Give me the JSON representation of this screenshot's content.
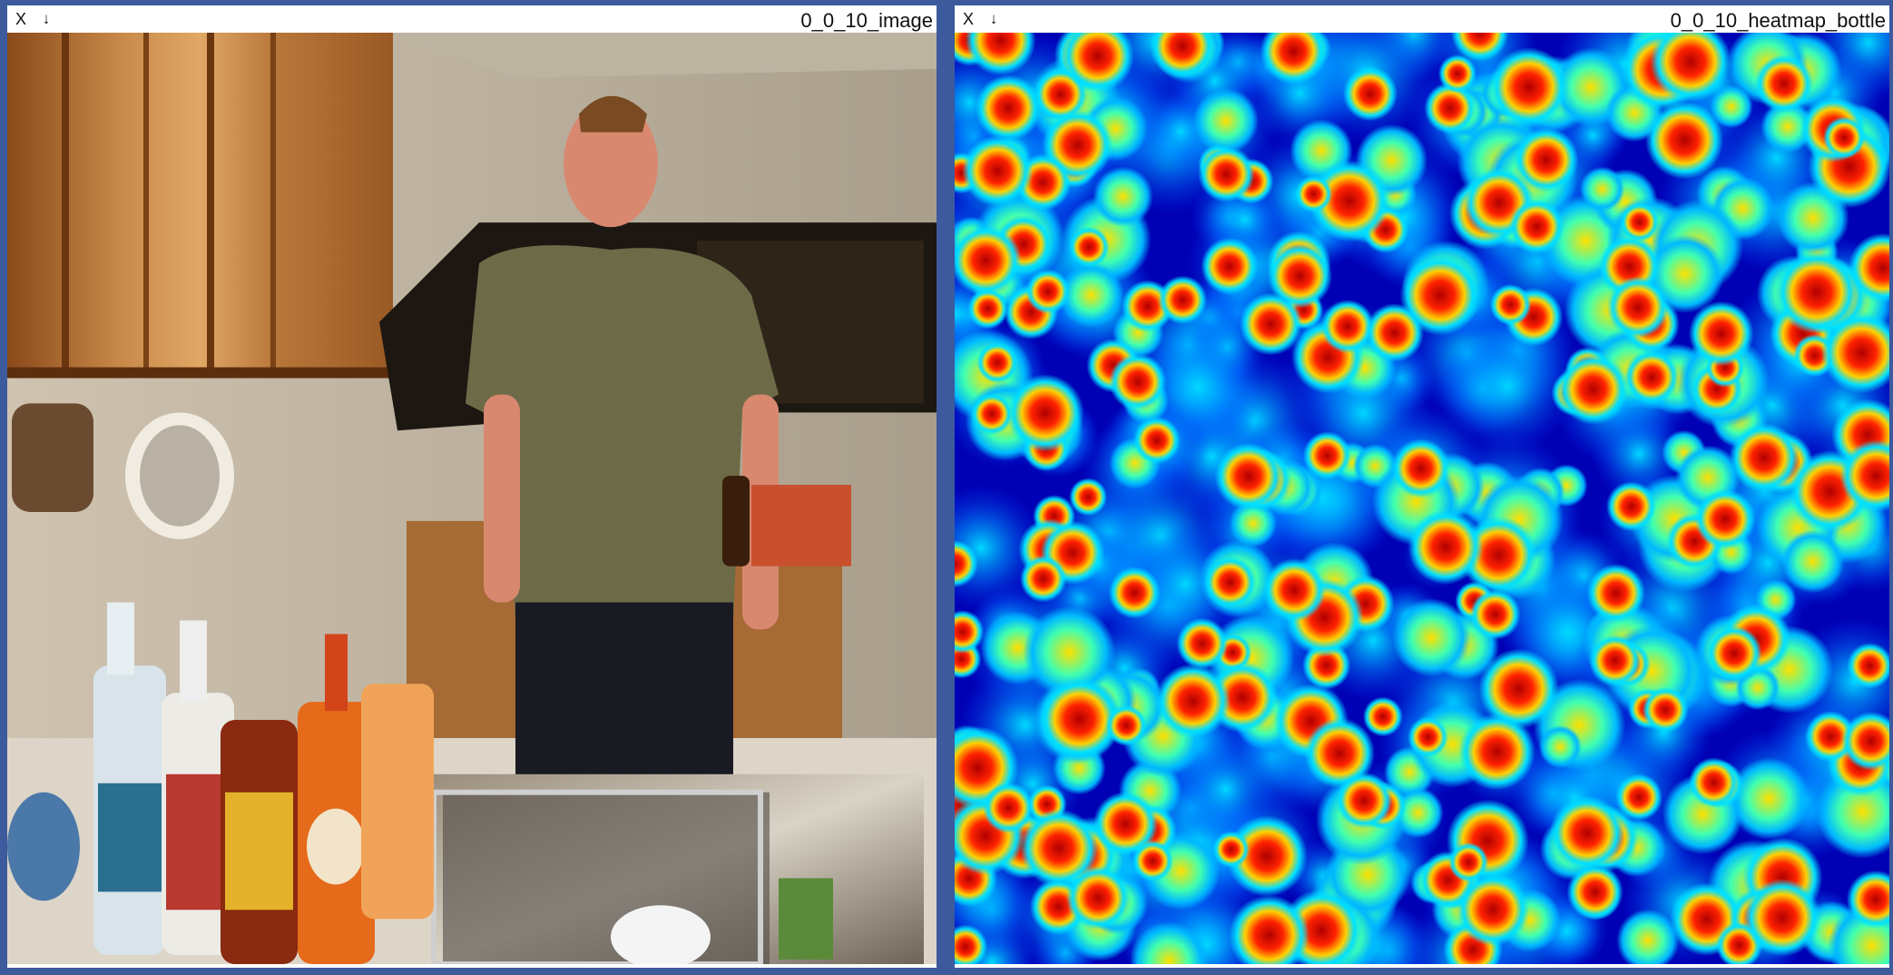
{
  "panels": [
    {
      "title": "0_0_10_image",
      "close_label": "X",
      "save_label": "↓",
      "content_kind": "photo: man standing in a boat galley kitchen with liquor bottles and a sink"
    },
    {
      "title": "0_0_10_heatmap_bottle",
      "close_label": "X",
      "save_label": "↓",
      "content_kind": "heatmap"
    }
  ],
  "colors": {
    "background": "#3c5a9c",
    "heat_low": "#0000b4",
    "heat_mid": "#00e0ff",
    "heat_high": "#d00000"
  }
}
